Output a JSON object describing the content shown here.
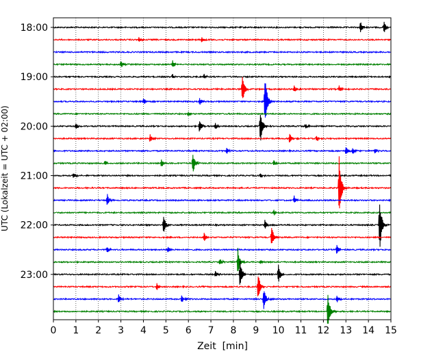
{
  "chart_data": {
    "type": "line",
    "title": "",
    "xlabel": "Zeit  [min]",
    "ylabel": "UTC (Lokalzeit = UTC + 02:00)",
    "xlim": [
      0,
      15
    ],
    "x_ticks": [
      0,
      1,
      2,
      3,
      4,
      5,
      6,
      7,
      8,
      9,
      10,
      11,
      12,
      13,
      14,
      15
    ],
    "y_tick_labels": [
      "18:00",
      "19:00",
      "20:00",
      "21:00",
      "22:00",
      "23:00"
    ],
    "vertical_grid": "dotted",
    "trace_colors": [
      "#000000",
      "#ff0000",
      "#0000ff",
      "#008000"
    ],
    "traces": [
      {
        "start": "18:00",
        "color": "black",
        "events": [
          {
            "t": 13.65,
            "amp": 0.5
          },
          {
            "t": 14.7,
            "amp": 0.5
          }
        ]
      },
      {
        "start": "18:15",
        "color": "red",
        "events": [
          {
            "t": 3.8,
            "amp": 0.25
          },
          {
            "t": 6.6,
            "amp": 0.25
          }
        ]
      },
      {
        "start": "18:30",
        "color": "blue",
        "events": []
      },
      {
        "start": "18:45",
        "color": "green",
        "events": [
          {
            "t": 3.0,
            "amp": 0.3
          },
          {
            "t": 5.3,
            "amp": 0.3
          }
        ]
      },
      {
        "start": "19:00",
        "color": "black",
        "events": [
          {
            "t": 5.3,
            "amp": 0.2
          },
          {
            "t": 6.7,
            "amp": 0.2
          }
        ]
      },
      {
        "start": "19:15",
        "color": "red",
        "events": [
          {
            "t": 8.4,
            "amp": 1.2
          },
          {
            "t": 10.7,
            "amp": 0.3
          },
          {
            "t": 12.7,
            "amp": 0.3
          }
        ]
      },
      {
        "start": "19:30",
        "color": "blue",
        "events": [
          {
            "t": 9.4,
            "amp": 2.5
          },
          {
            "t": 4.0,
            "amp": 0.3
          },
          {
            "t": 6.5,
            "amp": 0.3
          }
        ]
      },
      {
        "start": "19:45",
        "color": "green",
        "events": [
          {
            "t": 6.0,
            "amp": 0.2
          }
        ]
      },
      {
        "start": "20:00",
        "color": "black",
        "events": [
          {
            "t": 9.2,
            "amp": 1.4
          },
          {
            "t": 6.5,
            "amp": 0.6
          },
          {
            "t": 7.2,
            "amp": 0.3
          },
          {
            "t": 1.0,
            "amp": 0.3
          },
          {
            "t": 11.2,
            "amp": 0.2
          }
        ]
      },
      {
        "start": "20:15",
        "color": "red",
        "events": [
          {
            "t": 4.3,
            "amp": 0.35
          },
          {
            "t": 10.5,
            "amp": 0.5
          },
          {
            "t": 11.7,
            "amp": 0.3
          }
        ]
      },
      {
        "start": "20:30",
        "color": "blue",
        "events": [
          {
            "t": 7.7,
            "amp": 0.3
          },
          {
            "t": 13.0,
            "amp": 0.4
          },
          {
            "t": 13.3,
            "amp": 0.3
          },
          {
            "t": 14.3,
            "amp": 0.25
          }
        ]
      },
      {
        "start": "20:45",
        "color": "green",
        "events": [
          {
            "t": 6.2,
            "amp": 0.9
          },
          {
            "t": 4.8,
            "amp": 0.4
          },
          {
            "t": 2.3,
            "amp": 0.25
          },
          {
            "t": 9.8,
            "amp": 0.25
          }
        ]
      },
      {
        "start": "21:00",
        "color": "black",
        "events": [
          {
            "t": 0.9,
            "amp": 0.25
          },
          {
            "t": 9.2,
            "amp": 0.2
          }
        ]
      },
      {
        "start": "21:15",
        "color": "red",
        "events": [
          {
            "t": 12.7,
            "amp": 2.8
          }
        ]
      },
      {
        "start": "21:30",
        "color": "blue",
        "events": [
          {
            "t": 2.4,
            "amp": 0.5
          },
          {
            "t": 10.7,
            "amp": 0.35
          }
        ]
      },
      {
        "start": "21:45",
        "color": "green",
        "events": [
          {
            "t": 9.8,
            "amp": 0.2
          }
        ]
      },
      {
        "start": "22:00",
        "color": "black",
        "events": [
          {
            "t": 14.5,
            "amp": 2.5
          },
          {
            "t": 4.9,
            "amp": 0.8
          },
          {
            "t": 9.4,
            "amp": 0.4
          }
        ]
      },
      {
        "start": "22:15",
        "color": "red",
        "events": [
          {
            "t": 9.7,
            "amp": 0.9
          },
          {
            "t": 6.7,
            "amp": 0.4
          }
        ]
      },
      {
        "start": "22:30",
        "color": "blue",
        "events": [
          {
            "t": 12.6,
            "amp": 0.5
          },
          {
            "t": 2.4,
            "amp": 0.25
          },
          {
            "t": 5.1,
            "amp": 0.25
          }
        ]
      },
      {
        "start": "22:45",
        "color": "green",
        "events": [
          {
            "t": 8.2,
            "amp": 1.1
          },
          {
            "t": 7.4,
            "amp": 0.3
          },
          {
            "t": 9.2,
            "amp": 0.2
          }
        ]
      },
      {
        "start": "23:00",
        "color": "black",
        "events": [
          {
            "t": 8.3,
            "amp": 1.2
          },
          {
            "t": 10.0,
            "amp": 0.8
          },
          {
            "t": 7.2,
            "amp": 0.3
          }
        ]
      },
      {
        "start": "23:15",
        "color": "red",
        "events": [
          {
            "t": 9.1,
            "amp": 1.2
          },
          {
            "t": 4.6,
            "amp": 0.3
          }
        ]
      },
      {
        "start": "23:30",
        "color": "blue",
        "events": [
          {
            "t": 9.35,
            "amp": 0.9
          },
          {
            "t": 5.7,
            "amp": 0.4
          },
          {
            "t": 2.9,
            "amp": 0.4
          },
          {
            "t": 12.6,
            "amp": 0.35
          }
        ]
      },
      {
        "start": "23:45",
        "color": "green",
        "events": [
          {
            "t": 12.2,
            "amp": 1.6
          }
        ]
      }
    ]
  }
}
